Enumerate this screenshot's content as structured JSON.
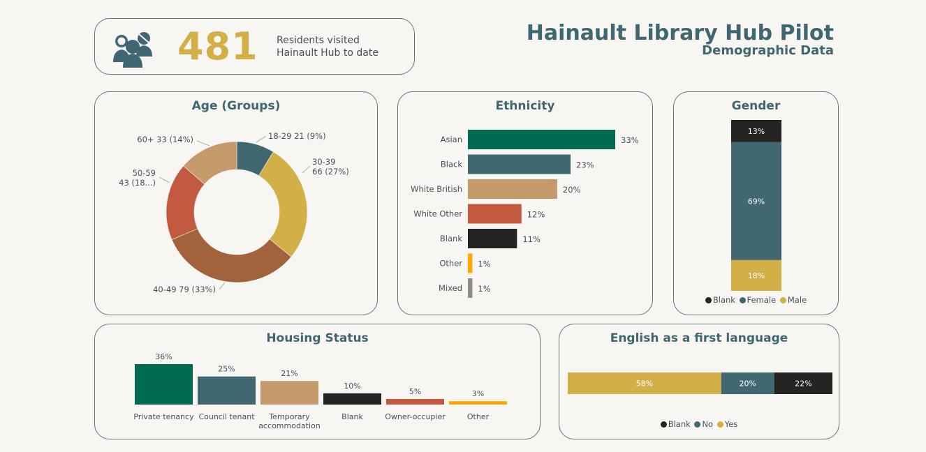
{
  "header": {
    "title": "Hainault Library Hub Pilot",
    "subtitle": "Demographic Data"
  },
  "kpi": {
    "value": "481",
    "label": "Residents visited Hainault Hub to date",
    "icon": "users-icon"
  },
  "colors": {
    "teal_green": "#006b52",
    "slate": "#416871",
    "tan": "#c59a6b",
    "red": "#c35a3f",
    "black": "#252422",
    "orange": "#ffa600",
    "gray": "#938b87",
    "gold": "#d3af48",
    "brown": "#a2623b"
  },
  "chart_data": [
    {
      "id": "age",
      "type": "pie",
      "donut": true,
      "title": "Age (Groups)",
      "categories": [
        "18-29",
        "30-39",
        "40-49",
        "50-59",
        "60+"
      ],
      "values": [
        21,
        66,
        79,
        43,
        33
      ],
      "percent": [
        9,
        27,
        33,
        18,
        14
      ],
      "labels": [
        "18-29 21 (9%)",
        "30-39\n66 (27%)",
        "40-49 79 (33%)",
        "50-59\n43 (18...)",
        "60+ 33 (14%)"
      ],
      "colors": [
        "#416871",
        "#d3af48",
        "#a2623b",
        "#c35a3f",
        "#c59a6b"
      ]
    },
    {
      "id": "ethnicity",
      "type": "bar",
      "orientation": "horizontal",
      "title": "Ethnicity",
      "categories": [
        "Asian",
        "Black",
        "White British",
        "White Other",
        "Blank",
        "Other",
        "Mixed"
      ],
      "values": [
        33,
        23,
        20,
        12,
        11,
        1,
        1
      ],
      "value_labels": [
        "33%",
        "23%",
        "20%",
        "12%",
        "11%",
        "1%",
        "1%"
      ],
      "colors": [
        "#006b52",
        "#416871",
        "#c59a6b",
        "#c35a3f",
        "#252422",
        "#ffa600",
        "#938b87"
      ]
    },
    {
      "id": "gender",
      "type": "bar",
      "stacked": true,
      "title": "Gender",
      "series": [
        {
          "name": "Blank",
          "values": [
            13
          ],
          "label": "13%",
          "color": "#252422"
        },
        {
          "name": "Female",
          "values": [
            69
          ],
          "label": "69%",
          "color": "#416871"
        },
        {
          "name": "Male",
          "values": [
            18
          ],
          "label": "18%",
          "color": "#d3af48"
        }
      ],
      "legend": [
        "Blank",
        "Female",
        "Male"
      ]
    },
    {
      "id": "housing",
      "type": "bar",
      "title": "Housing Status",
      "categories": [
        "Private tenancy",
        "Council tenant",
        "Temporary\naccommodation",
        "Blank",
        "Owner-occupier",
        "Other"
      ],
      "values": [
        36,
        25,
        21,
        10,
        5,
        3
      ],
      "value_labels": [
        "36%",
        "25%",
        "21%",
        "10%",
        "5%",
        "3%"
      ],
      "colors": [
        "#006b52",
        "#416871",
        "#c59a6b",
        "#252422",
        "#c35a3f",
        "#ffa600"
      ]
    },
    {
      "id": "english",
      "type": "bar",
      "orientation": "horizontal",
      "stacked": true,
      "title": "English as a first language",
      "series": [
        {
          "name": "Yes",
          "values": [
            58
          ],
          "label": "58%",
          "color": "#d3af48"
        },
        {
          "name": "No",
          "values": [
            20
          ],
          "label": "20%",
          "color": "#416871"
        },
        {
          "name": "Blank",
          "values": [
            22
          ],
          "label": "22%",
          "color": "#252422"
        }
      ],
      "legend": [
        "Blank",
        "No",
        "Yes"
      ]
    }
  ]
}
